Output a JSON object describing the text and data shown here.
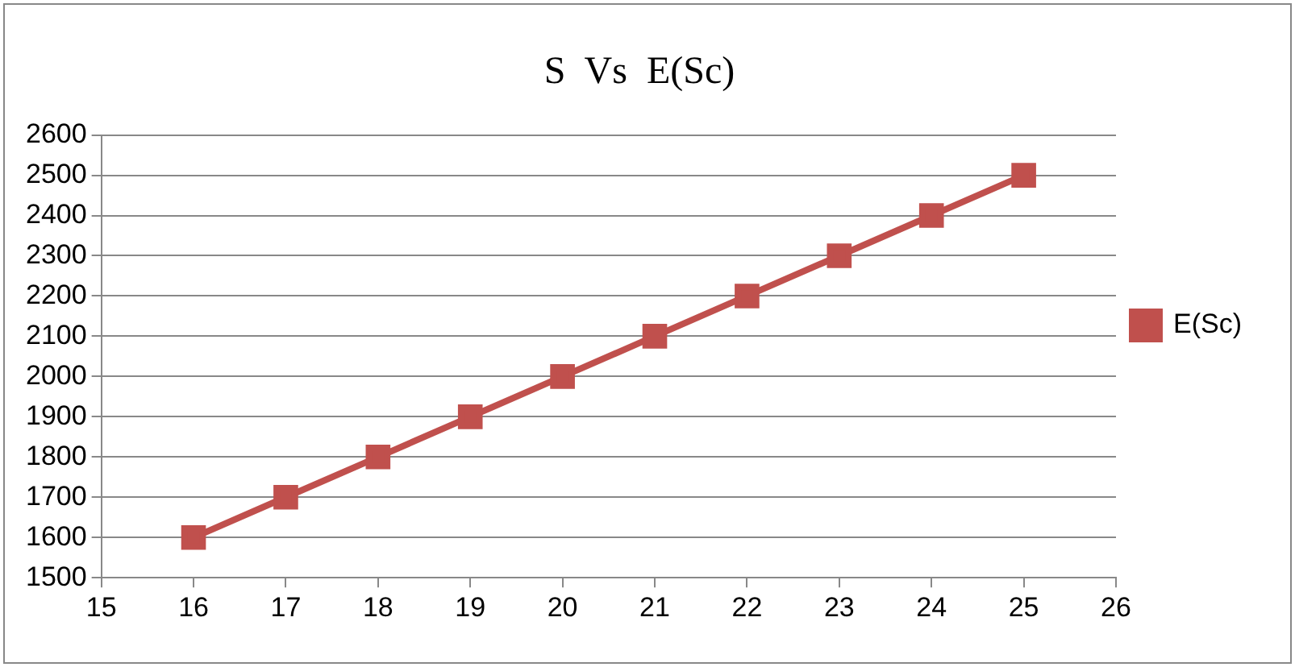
{
  "chart_data": {
    "type": "line",
    "title": "S  Vs  E(Sc)",
    "x": [
      16,
      17,
      18,
      19,
      20,
      21,
      22,
      23,
      24,
      25
    ],
    "series": [
      {
        "name": "E(Sc)",
        "color": "#c0504d",
        "values": [
          1600,
          1700,
          1800,
          1900,
          2000,
          2100,
          2200,
          2300,
          2400,
          2500
        ]
      }
    ],
    "xlim": [
      15,
      26
    ],
    "xticks": [
      15,
      16,
      17,
      18,
      19,
      20,
      21,
      22,
      23,
      24,
      25,
      26
    ],
    "ylim": [
      1500,
      2600
    ],
    "yticks": [
      1500,
      1600,
      1700,
      1800,
      1900,
      2000,
      2100,
      2200,
      2300,
      2400,
      2500,
      2600
    ],
    "grid": "y",
    "legend": "right",
    "marker": "square",
    "line_style": "solid"
  }
}
